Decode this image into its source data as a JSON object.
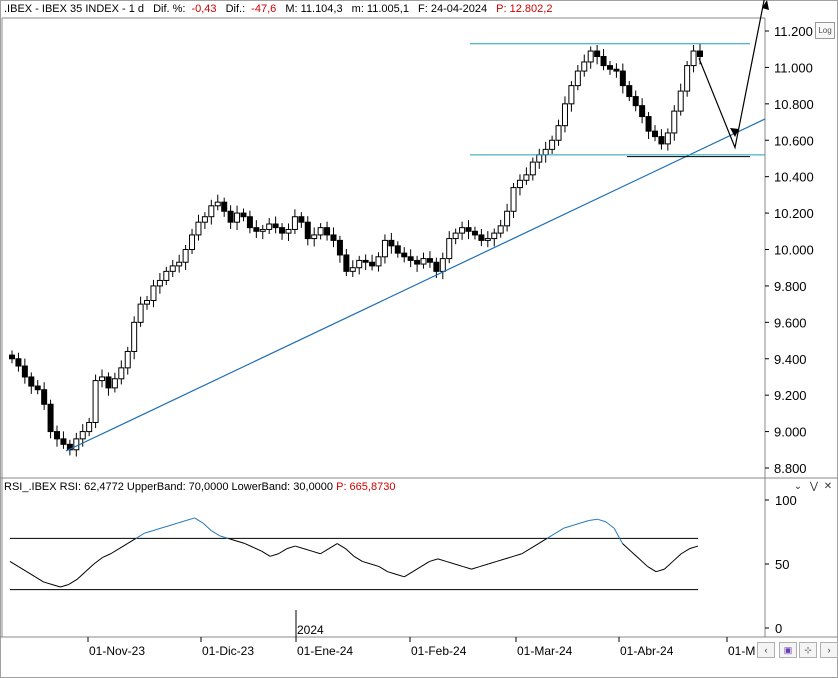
{
  "header": {
    "symbol": ".IBEX - IBEX 35 INDEX - 1 d",
    "dif_pct_label": "Dif. %:",
    "dif_pct_value": "-0,43",
    "dif_label": "Dif.:",
    "dif_value": "-47,6",
    "max_label": "M: 11.104,3",
    "min_label": "m: 11.005,1",
    "date_label": "F: 24-04-2024",
    "p_label": "P: 12.802,2"
  },
  "log_button": "Log",
  "rsi_header": {
    "name": "RSI_.IBEX",
    "rsi": "RSI: 62,4772",
    "upper": "UpperBand: 70,0000",
    "lower": "LowerBand: 30,0000",
    "p": "P: 665,8730"
  },
  "colors": {
    "up_candle": "#ffffff",
    "down_candle": "#000000",
    "trendline": "#1f6fb5",
    "support_line": "#1aa0b8",
    "rsi_line": "#000000",
    "rsi_overbought": "#2a7ab5"
  },
  "chart_data": [
    {
      "type": "candlestick",
      "title": "IBEX 35 INDEX",
      "ylim": [
        8750,
        11320
      ],
      "y_ticks": [
        "11.200",
        "11.000",
        "10.800",
        "10.600",
        "10.400",
        "10.200",
        "10.000",
        "9.800",
        "9.600",
        "9.400",
        "9.200",
        "9.000",
        "8.800"
      ],
      "x_ticks": [
        "01-Nov-23",
        "01-Dic-23",
        "01-Ene-24",
        "01-Feb-24",
        "01-Mar-24",
        "01-Abr-24",
        "01-M"
      ],
      "year_marker": "2024",
      "close_series_approx": [
        9400,
        9360,
        9300,
        9250,
        9230,
        9150,
        9000,
        8960,
        8930,
        8900,
        8960,
        9000,
        9050,
        9280,
        9300,
        9240,
        9290,
        9350,
        9440,
        9600,
        9700,
        9720,
        9800,
        9830,
        9880,
        9910,
        9930,
        10000,
        10080,
        10150,
        10180,
        10240,
        10260,
        10210,
        10150,
        10200,
        10180,
        10120,
        10100,
        10110,
        10140,
        10120,
        10090,
        10110,
        10180,
        10150,
        10060,
        10080,
        10120,
        10080,
        10050,
        9970,
        9880,
        9900,
        9940,
        9930,
        9910,
        9960,
        10050,
        10020,
        9980,
        9960,
        9940,
        9920,
        9950,
        9930,
        9880,
        9950,
        10060,
        10090,
        10120,
        10100,
        10080,
        10050,
        10060,
        10090,
        10130,
        10210,
        10340,
        10380,
        10410,
        10480,
        10520,
        10550,
        10600,
        10680,
        10800,
        10900,
        10980,
        11030,
        11090,
        11060,
        11010,
        10990,
        10980,
        10900,
        10840,
        10790,
        10730,
        10650,
        10620,
        10580,
        10640,
        10760,
        10870,
        11010,
        11090,
        11060
      ],
      "trendline": {
        "from": [
          "27-Oct-23",
          8870
        ],
        "to": [
          "30-Abr-24",
          10640
        ]
      },
      "resistance": 11130,
      "supports": [
        10520,
        10510
      ],
      "projection": [
        "11.050",
        "10.560",
        "11.450"
      ]
    },
    {
      "type": "line",
      "title": "RSI_.IBEX",
      "ylim": [
        0,
        100
      ],
      "y_ticks": [
        "100",
        "50",
        "0"
      ],
      "bands": {
        "upper": 70,
        "lower": 30
      },
      "values": [
        52,
        48,
        44,
        40,
        36,
        34,
        32,
        34,
        38,
        44,
        50,
        55,
        58,
        62,
        66,
        70,
        74,
        76,
        78,
        80,
        82,
        84,
        86,
        82,
        76,
        72,
        70,
        68,
        66,
        63,
        60,
        56,
        58,
        62,
        64,
        62,
        60,
        58,
        62,
        66,
        62,
        56,
        52,
        50,
        48,
        44,
        42,
        40,
        44,
        48,
        52,
        54,
        52,
        50,
        48,
        46,
        48,
        50,
        52,
        54,
        56,
        58,
        62,
        66,
        70,
        74,
        78,
        80,
        82,
        84,
        85,
        83,
        78,
        66,
        60,
        54,
        48,
        44,
        46,
        52,
        58,
        62,
        64
      ]
    }
  ]
}
